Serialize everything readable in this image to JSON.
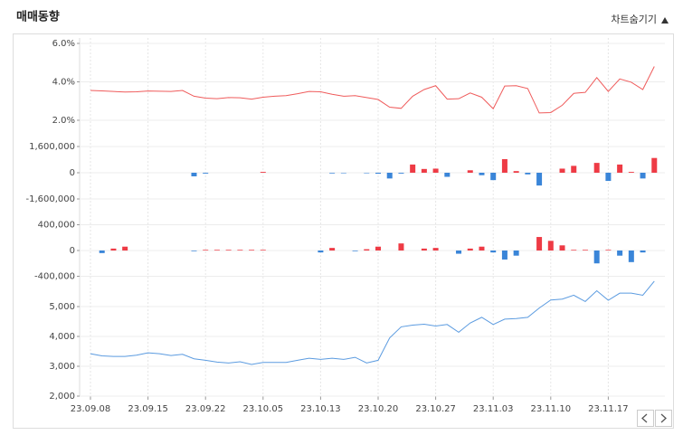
{
  "header": {
    "title": "매매동향",
    "toggle": "차트숨기기"
  },
  "chart_data": [
    {
      "type": "line",
      "color": "#ef5b5b",
      "ylim": [
        1.5,
        6
      ],
      "yticks": [
        {
          "value": 6,
          "label": "6.0%"
        },
        {
          "value": 4,
          "label": "4.0%"
        },
        {
          "value": 2,
          "label": "2.0%"
        }
      ],
      "values": [
        3.55,
        3.53,
        3.5,
        3.47,
        3.48,
        3.52,
        3.51,
        3.5,
        3.55,
        3.25,
        3.15,
        3.12,
        3.18,
        3.17,
        3.1,
        3.2,
        3.25,
        3.28,
        3.38,
        3.5,
        3.48,
        3.35,
        3.25,
        3.28,
        3.18,
        3.08,
        2.68,
        2.62,
        3.25,
        3.6,
        3.8,
        3.1,
        3.12,
        3.42,
        3.2,
        2.6,
        3.78,
        3.8,
        3.65,
        2.38,
        2.4,
        2.78,
        3.4,
        3.45,
        4.22,
        3.5,
        4.15,
        3.98,
        3.6,
        4.8
      ]
    },
    {
      "type": "bar",
      "positive_color": "#ee3b45",
      "negative_color": "#3a85d8",
      "ylim": [
        -2000000,
        2000000
      ],
      "yticks": [
        {
          "value": 1600000,
          "label": "1,600,000"
        },
        0,
        {
          "value": -1600000,
          "label": "-1,600,000"
        }
      ],
      "values": [
        0,
        0,
        0,
        0,
        0,
        0,
        0,
        0,
        0,
        -220000,
        -50000,
        0,
        0,
        0,
        0,
        50000,
        0,
        0,
        0,
        0,
        0,
        -40000,
        -30000,
        0,
        -30000,
        -60000,
        -350000,
        -50000,
        500000,
        230000,
        250000,
        -250000,
        0,
        150000,
        -150000,
        -450000,
        830000,
        100000,
        -100000,
        -780000,
        0,
        250000,
        420000,
        0,
        600000,
        -500000,
        500000,
        50000,
        -350000,
        900000
      ]
    },
    {
      "type": "bar",
      "positive_color": "#ee3b45",
      "negative_color": "#3a85d8",
      "ylim": [
        -500000,
        500000
      ],
      "yticks": [
        {
          "value": 400000,
          "label": "400,000"
        },
        0,
        {
          "value": -400000,
          "label": "-400,000"
        }
      ],
      "values": [
        0,
        -40000,
        30000,
        60000,
        0,
        0,
        0,
        0,
        0,
        -10000,
        10000,
        10000,
        10000,
        10000,
        10000,
        10000,
        0,
        0,
        0,
        0,
        -30000,
        40000,
        0,
        -10000,
        20000,
        60000,
        0,
        110000,
        0,
        30000,
        40000,
        0,
        -50000,
        30000,
        60000,
        -30000,
        -140000,
        -80000,
        0,
        210000,
        150000,
        80000,
        10000,
        10000,
        -200000,
        10000,
        -80000,
        -180000,
        -30000,
        0
      ]
    },
    {
      "type": "line",
      "color": "#5b9be0",
      "ylim": [
        2000,
        6000
      ],
      "yticks": [
        {
          "value": 5000,
          "label": "5,000"
        },
        {
          "value": 4000,
          "label": "4,000"
        },
        {
          "value": 3000,
          "label": "3,000"
        },
        {
          "value": 2000,
          "label": "2,000"
        }
      ],
      "categories": [
        "23.09.08",
        null,
        null,
        null,
        null,
        "23.09.15",
        null,
        null,
        null,
        null,
        "23.09.22",
        null,
        null,
        null,
        null,
        "23.10.05",
        null,
        null,
        null,
        null,
        "23.10.13",
        null,
        null,
        null,
        null,
        "23.10.20",
        null,
        null,
        null,
        null,
        "23.10.27",
        null,
        null,
        null,
        null,
        "23.11.03",
        null,
        null,
        null,
        null,
        "23.11.10",
        null,
        null,
        null,
        null,
        "23.11.17",
        null,
        null,
        null,
        null
      ],
      "values": [
        3420,
        3350,
        3330,
        3330,
        3370,
        3450,
        3420,
        3360,
        3400,
        3250,
        3200,
        3140,
        3110,
        3150,
        3060,
        3130,
        3130,
        3130,
        3200,
        3270,
        3230,
        3270,
        3230,
        3300,
        3110,
        3200,
        3950,
        4320,
        4380,
        4410,
        4350,
        4400,
        4140,
        4450,
        4640,
        4400,
        4580,
        4600,
        4640,
        4950,
        5220,
        5250,
        5380,
        5170,
        5530,
        5210,
        5450,
        5450,
        5380,
        5850
      ]
    }
  ]
}
